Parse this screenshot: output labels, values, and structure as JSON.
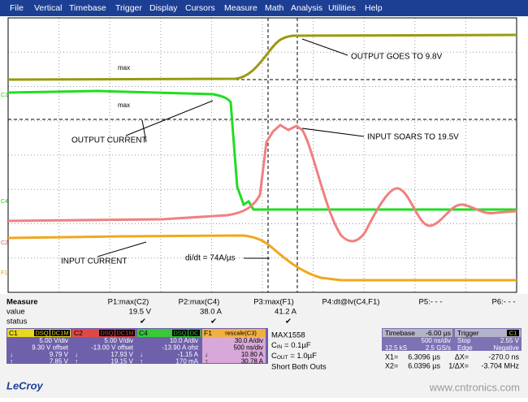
{
  "menu": [
    "File",
    "Vertical",
    "Timebase",
    "Trigger",
    "Display",
    "Cursors",
    "Measure",
    "Math",
    "Analysis",
    "Utilities",
    "Help"
  ],
  "screen": {
    "trace_labels": [
      "C1",
      "C4",
      "C2",
      "F1"
    ],
    "max_labels": [
      "max",
      "max"
    ],
    "annotations": [
      "OUTPUT GOES TO 9.8V",
      "OUTPUT CURRENT",
      "INPUT SOARS TO 19.5V",
      "INPUT CURRENT",
      "di/dt = 74A/µs"
    ]
  },
  "measure": {
    "row_labels": [
      "Measure",
      "value",
      "status"
    ],
    "params": [
      {
        "name": "P1:max(C2)",
        "value": "19.5 V",
        "status": "✔"
      },
      {
        "name": "P2:max(C4)",
        "value": "38.0 A",
        "status": "✔"
      },
      {
        "name": "P3:max(F1)",
        "value": "41.2 A",
        "status": "✔"
      },
      {
        "name": "P4:dt@lv(C4,F1)"
      },
      {
        "name": "P5:- - -"
      },
      {
        "name": "P6:- - -"
      }
    ]
  },
  "channels": [
    {
      "name": "C1",
      "badges": [
        "DSQ",
        "DC1M"
      ],
      "rows": [
        [
          "5.00 V/div"
        ],
        [
          "9.30 V offset"
        ],
        [
          "↓",
          "9.79 V"
        ],
        [
          "↑",
          "7.85 V"
        ]
      ]
    },
    {
      "name": "C2",
      "badges": [
        "DSQ",
        "DC1M"
      ],
      "rows": [
        [
          "5.00 V/div"
        ],
        [
          "-13.00 V offset"
        ],
        [
          "↓",
          "17.93 V"
        ],
        [
          "↑",
          "19.15 V"
        ]
      ]
    },
    {
      "name": "C4",
      "badges": [
        "DSQ",
        "DC"
      ],
      "rows": [
        [
          "10.0 A/div"
        ],
        [
          "-13.90 A ofst"
        ],
        [
          "↓",
          "-1.15 A"
        ],
        [
          "↑",
          "170 mA"
        ]
      ]
    },
    {
      "name": "F1",
      "badges": [
        "rescale(C3)"
      ],
      "rows": [
        [
          "30.0 A/div"
        ],
        [
          "500 ns/div"
        ],
        [
          "↓",
          "10.80 A"
        ],
        [
          "↑",
          "30.78 A"
        ]
      ]
    }
  ],
  "notes": {
    "title": "MAX1558",
    "cin": [
      "C",
      "IN",
      " = 0.1µF"
    ],
    "cout": [
      "C",
      "OUT",
      " = 1.0µF"
    ],
    "short": "Short Both Outs"
  },
  "timebase": {
    "title": "Timebase",
    "delay": "-6.00 µs",
    "rows": [
      [
        "500 ns/div"
      ],
      [
        "12.5 kS",
        "2.5 GS/s"
      ]
    ]
  },
  "trigger": {
    "title": "Trigger",
    "source": "C1",
    "rows": [
      [
        "Stop",
        "2.55 V"
      ],
      [
        "Edge",
        "Negative"
      ]
    ]
  },
  "cursors": [
    [
      "X1=",
      "6.3096 µs",
      "ΔX=",
      "-270.0 ns"
    ],
    [
      "X2=",
      "6.0396 µs",
      "1/ΔX=",
      "-3.704 MHz"
    ]
  ],
  "logo": "LeCroy",
  "watermark": "www.cntronics.com"
}
